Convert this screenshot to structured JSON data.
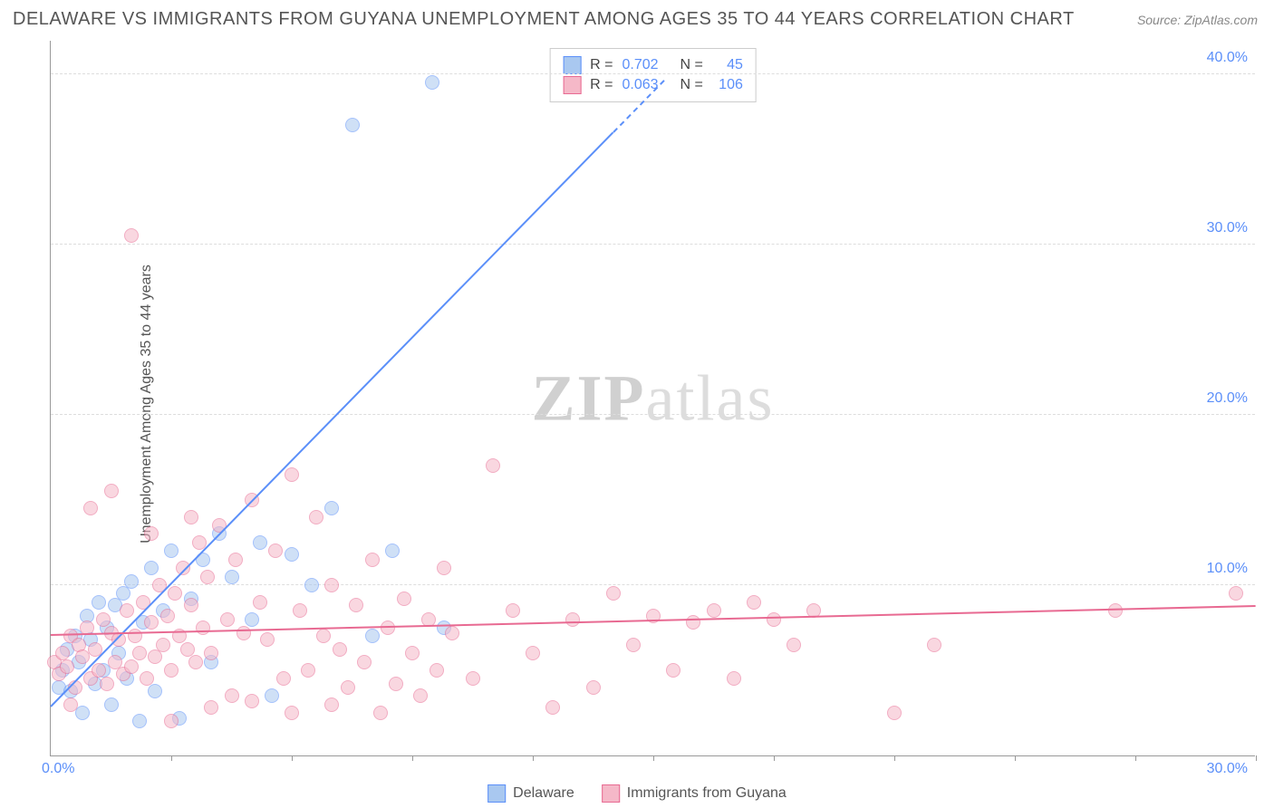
{
  "title": "DELAWARE VS IMMIGRANTS FROM GUYANA UNEMPLOYMENT AMONG AGES 35 TO 44 YEARS CORRELATION CHART",
  "source": "Source: ZipAtlas.com",
  "ylabel": "Unemployment Among Ages 35 to 44 years",
  "watermark_bold": "ZIP",
  "watermark_light": "atlas",
  "chart": {
    "type": "scatter",
    "xlim": [
      0,
      30
    ],
    "ylim": [
      0,
      42
    ],
    "x_axis_origin_label": "0.0%",
    "x_axis_end_label": "30.0%",
    "y_ticks": [
      10,
      20,
      30,
      40
    ],
    "y_tick_labels": [
      "10.0%",
      "20.0%",
      "30.0%",
      "40.0%"
    ],
    "x_tick_positions": [
      3,
      6,
      9,
      12,
      15,
      18,
      21,
      24,
      27,
      30
    ],
    "grid_color": "#dddddd",
    "background_color": "#ffffff",
    "axis_label_color": "#5b8ff9",
    "series": [
      {
        "name": "Delaware",
        "color_fill": "#a9c8f0",
        "color_stroke": "#5b8ff9",
        "marker_radius": 8,
        "fill_opacity": 0.55,
        "r_value": "0.702",
        "n_value": "45",
        "regression": {
          "x1": 0,
          "y1": 2.8,
          "x2": 14,
          "y2": 36.5,
          "dashed_extension": true
        },
        "points": [
          [
            0.2,
            4.0
          ],
          [
            0.3,
            5.0
          ],
          [
            0.4,
            6.2
          ],
          [
            0.5,
            3.8
          ],
          [
            0.6,
            7.0
          ],
          [
            0.7,
            5.5
          ],
          [
            0.8,
            2.5
          ],
          [
            0.9,
            8.2
          ],
          [
            1.0,
            6.8
          ],
          [
            1.1,
            4.2
          ],
          [
            1.2,
            9.0
          ],
          [
            1.3,
            5.0
          ],
          [
            1.4,
            7.5
          ],
          [
            1.5,
            3.0
          ],
          [
            1.6,
            8.8
          ],
          [
            1.7,
            6.0
          ],
          [
            1.8,
            9.5
          ],
          [
            1.9,
            4.5
          ],
          [
            2.0,
            10.2
          ],
          [
            2.2,
            2.0
          ],
          [
            2.3,
            7.8
          ],
          [
            2.5,
            11.0
          ],
          [
            2.6,
            3.8
          ],
          [
            2.8,
            8.5
          ],
          [
            3.0,
            12.0
          ],
          [
            3.2,
            2.2
          ],
          [
            3.5,
            9.2
          ],
          [
            3.8,
            11.5
          ],
          [
            4.0,
            5.5
          ],
          [
            4.2,
            13.0
          ],
          [
            4.5,
            10.5
          ],
          [
            5.0,
            8.0
          ],
          [
            5.2,
            12.5
          ],
          [
            5.5,
            3.5
          ],
          [
            6.0,
            11.8
          ],
          [
            6.5,
            10.0
          ],
          [
            7.0,
            14.5
          ],
          [
            7.5,
            37.0
          ],
          [
            8.0,
            7.0
          ],
          [
            8.5,
            12.0
          ],
          [
            9.5,
            39.5
          ],
          [
            9.8,
            7.5
          ]
        ]
      },
      {
        "name": "Immigrants from Guyana",
        "color_fill": "#f5b8c8",
        "color_stroke": "#e86a92",
        "marker_radius": 8,
        "fill_opacity": 0.55,
        "r_value": "0.063",
        "n_value": "106",
        "regression": {
          "x1": 0,
          "y1": 7.0,
          "x2": 30,
          "y2": 8.7,
          "dashed_extension": false
        },
        "points": [
          [
            0.1,
            5.5
          ],
          [
            0.2,
            4.8
          ],
          [
            0.3,
            6.0
          ],
          [
            0.4,
            5.2
          ],
          [
            0.5,
            7.0
          ],
          [
            0.6,
            4.0
          ],
          [
            0.7,
            6.5
          ],
          [
            0.8,
            5.8
          ],
          [
            0.9,
            7.5
          ],
          [
            1.0,
            4.5
          ],
          [
            1.1,
            6.2
          ],
          [
            1.2,
            5.0
          ],
          [
            1.3,
            8.0
          ],
          [
            1.4,
            4.2
          ],
          [
            1.5,
            7.2
          ],
          [
            1.6,
            5.5
          ],
          [
            1.7,
            6.8
          ],
          [
            1.8,
            4.8
          ],
          [
            1.9,
            8.5
          ],
          [
            2.0,
            5.2
          ],
          [
            2.1,
            7.0
          ],
          [
            2.2,
            6.0
          ],
          [
            2.3,
            9.0
          ],
          [
            2.4,
            4.5
          ],
          [
            2.5,
            7.8
          ],
          [
            2.6,
            5.8
          ],
          [
            2.7,
            10.0
          ],
          [
            2.8,
            6.5
          ],
          [
            2.9,
            8.2
          ],
          [
            3.0,
            5.0
          ],
          [
            3.1,
            9.5
          ],
          [
            3.2,
            7.0
          ],
          [
            3.3,
            11.0
          ],
          [
            3.4,
            6.2
          ],
          [
            3.5,
            8.8
          ],
          [
            3.6,
            5.5
          ],
          [
            3.7,
            12.5
          ],
          [
            3.8,
            7.5
          ],
          [
            3.9,
            10.5
          ],
          [
            4.0,
            6.0
          ],
          [
            4.2,
            13.5
          ],
          [
            4.4,
            8.0
          ],
          [
            4.6,
            11.5
          ],
          [
            4.8,
            7.2
          ],
          [
            5.0,
            15.0
          ],
          [
            5.2,
            9.0
          ],
          [
            5.4,
            6.8
          ],
          [
            5.6,
            12.0
          ],
          [
            5.8,
            4.5
          ],
          [
            6.0,
            16.5
          ],
          [
            6.2,
            8.5
          ],
          [
            6.4,
            5.0
          ],
          [
            6.6,
            14.0
          ],
          [
            6.8,
            7.0
          ],
          [
            7.0,
            10.0
          ],
          [
            7.2,
            6.2
          ],
          [
            7.4,
            4.0
          ],
          [
            7.6,
            8.8
          ],
          [
            7.8,
            5.5
          ],
          [
            8.0,
            11.5
          ],
          [
            8.2,
            2.5
          ],
          [
            8.4,
            7.5
          ],
          [
            8.6,
            4.2
          ],
          [
            8.8,
            9.2
          ],
          [
            9.0,
            6.0
          ],
          [
            9.2,
            3.5
          ],
          [
            9.4,
            8.0
          ],
          [
            9.6,
            5.0
          ],
          [
            9.8,
            11.0
          ],
          [
            10.0,
            7.2
          ],
          [
            10.5,
            4.5
          ],
          [
            11.0,
            17.0
          ],
          [
            11.5,
            8.5
          ],
          [
            12.0,
            6.0
          ],
          [
            12.5,
            2.8
          ],
          [
            13.0,
            8.0
          ],
          [
            13.5,
            4.0
          ],
          [
            14.0,
            9.5
          ],
          [
            14.5,
            6.5
          ],
          [
            15.0,
            8.2
          ],
          [
            15.5,
            5.0
          ],
          [
            16.0,
            7.8
          ],
          [
            16.5,
            8.5
          ],
          [
            17.0,
            4.5
          ],
          [
            17.5,
            9.0
          ],
          [
            18.0,
            8.0
          ],
          [
            18.5,
            6.5
          ],
          [
            19.0,
            8.5
          ],
          [
            21.0,
            2.5
          ],
          [
            22.0,
            6.5
          ],
          [
            26.5,
            8.5
          ],
          [
            29.5,
            9.5
          ],
          [
            2.0,
            30.5
          ],
          [
            3.0,
            2.0
          ],
          [
            4.0,
            2.8
          ],
          [
            5.0,
            3.2
          ],
          [
            6.0,
            2.5
          ],
          [
            7.0,
            3.0
          ],
          [
            1.0,
            14.5
          ],
          [
            1.5,
            15.5
          ],
          [
            2.5,
            13.0
          ],
          [
            3.5,
            14.0
          ],
          [
            4.5,
            3.5
          ],
          [
            0.5,
            3.0
          ]
        ]
      }
    ],
    "top_legend": {
      "r_label": "R =",
      "n_label": "N ="
    },
    "bottom_legend_labels": [
      "Delaware",
      "Immigrants from Guyana"
    ]
  }
}
